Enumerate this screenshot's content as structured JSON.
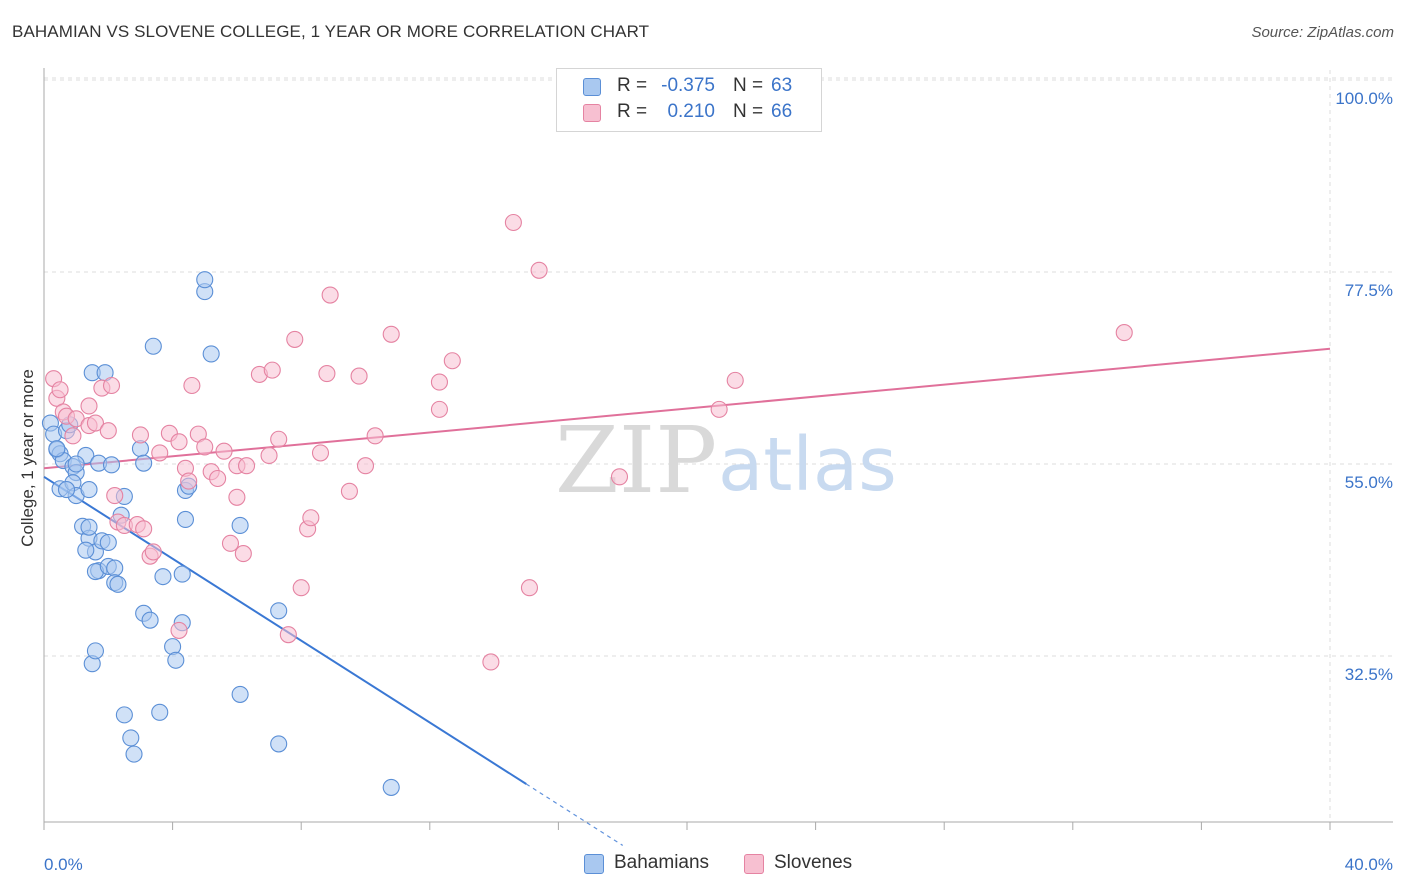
{
  "title": "BAHAMIAN VS SLOVENE COLLEGE, 1 YEAR OR MORE CORRELATION CHART",
  "source": "Source: ZipAtlas.com",
  "watermark": {
    "zip": "ZIP",
    "atlas": "atlas"
  },
  "legend": {
    "r_label": "R =",
    "n_label": "N =",
    "rows": [
      {
        "r": "-0.375",
        "n": "63",
        "color": "#a9c8f0",
        "border": "#5b8fd6"
      },
      {
        "r": "0.210",
        "n": "66",
        "color": "#f7c0d1",
        "border": "#e583a2"
      }
    ]
  },
  "chart_data": {
    "type": "scatter",
    "xlabel": "",
    "ylabel": "College, 1 year or more",
    "xlim": [
      0,
      40
    ],
    "ylim": [
      12,
      103
    ],
    "x_tick_labels": [
      {
        "value": 0,
        "label": "0.0%"
      },
      {
        "value": 40,
        "label": "40.0%"
      }
    ],
    "y_tick_labels": [
      {
        "value": 100,
        "label": "100.0%"
      },
      {
        "value": 77.5,
        "label": "77.5%"
      },
      {
        "value": 55,
        "label": "55.0%"
      },
      {
        "value": 32.5,
        "label": "32.5%"
      }
    ],
    "series": [
      {
        "name": "Bahamians",
        "color": "#a9c8f0",
        "edge": "#5b8fd6",
        "trend": {
          "x0": 0,
          "y0": 53.5,
          "x1": 15,
          "y1": 17.5,
          "dash_to_x": 18,
          "dash_to_y": 10.3
        },
        "points": [
          [
            0.2,
            59.8
          ],
          [
            0.3,
            58.5
          ],
          [
            0.4,
            56.7
          ],
          [
            0.5,
            56.2
          ],
          [
            0.6,
            55.4
          ],
          [
            0.7,
            58.9
          ],
          [
            0.8,
            59.6
          ],
          [
            0.9,
            54.7
          ],
          [
            1.0,
            54.0
          ],
          [
            0.5,
            52.1
          ],
          [
            0.9,
            52.8
          ],
          [
            1.0,
            51.3
          ],
          [
            1.4,
            52.0
          ],
          [
            1.2,
            47.7
          ],
          [
            1.4,
            46.3
          ],
          [
            1.6,
            44.7
          ],
          [
            1.3,
            44.9
          ],
          [
            1.4,
            47.6
          ],
          [
            1.7,
            42.5
          ],
          [
            1.6,
            42.4
          ],
          [
            1.8,
            46.0
          ],
          [
            2.0,
            45.8
          ],
          [
            2.0,
            43.0
          ],
          [
            2.2,
            42.8
          ],
          [
            2.2,
            41.1
          ],
          [
            2.3,
            40.9
          ],
          [
            1.3,
            56.0
          ],
          [
            1.7,
            55.1
          ],
          [
            2.1,
            54.9
          ],
          [
            2.4,
            49.0
          ],
          [
            2.5,
            51.2
          ],
          [
            3.0,
            56.8
          ],
          [
            3.1,
            55.1
          ],
          [
            3.1,
            37.5
          ],
          [
            3.3,
            36.7
          ],
          [
            3.7,
            41.8
          ],
          [
            3.4,
            68.8
          ],
          [
            1.5,
            65.7
          ],
          [
            1.9,
            65.7
          ],
          [
            3.6,
            25.9
          ],
          [
            2.7,
            22.9
          ],
          [
            2.8,
            21.0
          ],
          [
            2.5,
            25.6
          ],
          [
            1.5,
            31.6
          ],
          [
            1.6,
            33.1
          ],
          [
            4.0,
            33.6
          ],
          [
            4.3,
            36.4
          ],
          [
            4.1,
            32.0
          ],
          [
            4.3,
            42.1
          ],
          [
            4.4,
            48.5
          ],
          [
            4.4,
            51.9
          ],
          [
            4.5,
            52.4
          ],
          [
            5.0,
            75.2
          ],
          [
            5.0,
            76.6
          ],
          [
            5.2,
            67.9
          ],
          [
            6.1,
            47.8
          ],
          [
            6.1,
            28.0
          ],
          [
            7.3,
            37.8
          ],
          [
            7.3,
            22.2
          ],
          [
            10.8,
            17.1
          ],
          [
            0.4,
            56.8
          ],
          [
            0.7,
            52.0
          ],
          [
            1.0,
            55.0
          ]
        ]
      },
      {
        "name": "Slovenes",
        "color": "#f7c0d1",
        "edge": "#e583a2",
        "trend": {
          "x0": 0,
          "y0": 54.5,
          "x1": 40,
          "y1": 68.5
        },
        "points": [
          [
            0.3,
            65.0
          ],
          [
            0.4,
            62.7
          ],
          [
            0.5,
            63.7
          ],
          [
            0.6,
            61.1
          ],
          [
            0.7,
            60.6
          ],
          [
            0.9,
            58.3
          ],
          [
            1.0,
            60.3
          ],
          [
            1.4,
            61.8
          ],
          [
            1.4,
            59.5
          ],
          [
            1.6,
            59.8
          ],
          [
            1.8,
            63.9
          ],
          [
            2.1,
            64.2
          ],
          [
            2.0,
            58.9
          ],
          [
            2.2,
            51.3
          ],
          [
            2.3,
            48.2
          ],
          [
            2.5,
            47.8
          ],
          [
            2.9,
            47.9
          ],
          [
            3.1,
            47.4
          ],
          [
            3.0,
            58.4
          ],
          [
            3.3,
            44.2
          ],
          [
            3.4,
            44.7
          ],
          [
            3.6,
            56.3
          ],
          [
            3.9,
            58.6
          ],
          [
            4.2,
            57.6
          ],
          [
            4.2,
            35.5
          ],
          [
            4.4,
            54.5
          ],
          [
            4.5,
            53.0
          ],
          [
            4.6,
            64.2
          ],
          [
            4.8,
            58.5
          ],
          [
            5.0,
            57.0
          ],
          [
            5.2,
            54.1
          ],
          [
            5.4,
            53.3
          ],
          [
            5.6,
            56.5
          ],
          [
            5.8,
            45.7
          ],
          [
            6.0,
            54.8
          ],
          [
            6.0,
            51.1
          ],
          [
            6.2,
            44.5
          ],
          [
            6.3,
            54.8
          ],
          [
            6.7,
            65.5
          ],
          [
            7.1,
            66.0
          ],
          [
            7.0,
            56.0
          ],
          [
            7.3,
            57.9
          ],
          [
            7.6,
            35.0
          ],
          [
            7.8,
            69.6
          ],
          [
            8.0,
            40.5
          ],
          [
            8.2,
            47.4
          ],
          [
            8.3,
            48.7
          ],
          [
            8.6,
            56.3
          ],
          [
            8.8,
            65.6
          ],
          [
            8.9,
            74.8
          ],
          [
            9.5,
            51.8
          ],
          [
            9.8,
            65.3
          ],
          [
            10.0,
            54.8
          ],
          [
            10.3,
            58.3
          ],
          [
            10.8,
            70.2
          ],
          [
            12.3,
            61.4
          ],
          [
            12.3,
            64.6
          ],
          [
            12.7,
            67.1
          ],
          [
            13.9,
            31.8
          ],
          [
            14.6,
            83.3
          ],
          [
            15.1,
            40.5
          ],
          [
            15.4,
            77.7
          ],
          [
            17.9,
            53.5
          ],
          [
            21.0,
            61.4
          ],
          [
            21.5,
            64.8
          ],
          [
            33.6,
            70.4
          ]
        ]
      }
    ],
    "grid": true
  }
}
